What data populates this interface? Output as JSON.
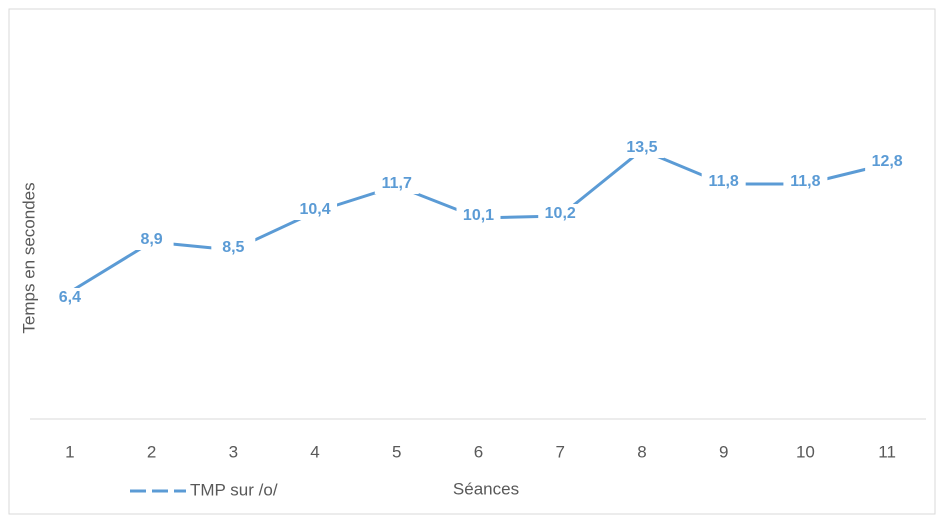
{
  "chart_data": {
    "type": "line",
    "x_label": "Séances",
    "y_label": "Temps en secondes",
    "categories": [
      "1",
      "2",
      "3",
      "4",
      "5",
      "6",
      "7",
      "8",
      "9",
      "10",
      "11"
    ],
    "series": [
      {
        "name": "TMP sur /o/",
        "color": "#5b9bd5",
        "values": [
          6.4,
          8.9,
          8.5,
          10.4,
          11.7,
          10.1,
          10.2,
          13.5,
          11.8,
          11.8,
          12.8
        ],
        "value_labels": [
          "6,4",
          "8,9",
          "8,5",
          "10,4",
          "11,7",
          "10,1",
          "10,2",
          "13,5",
          "11,8",
          "11,8",
          "12,8"
        ]
      }
    ],
    "ylim": [
      0,
      16
    ]
  }
}
